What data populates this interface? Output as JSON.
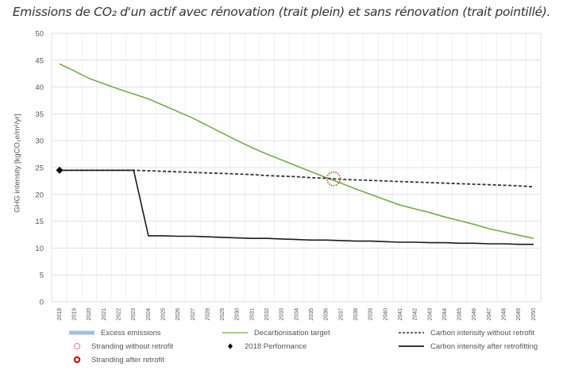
{
  "title": "Emissions de CO₂ d'un actif avec rénovation (trait plein) et sans rénovation (trait pointillé).",
  "chart_data": {
    "type": "line",
    "title": "Emissions de CO2 d'un actif avec rénovation (trait plein) et sans rénovation (trait pointillé).",
    "xlabel": "",
    "ylabel": "GHG intensity [kgCO2e/m²/yr]",
    "ylim": [
      0,
      50
    ],
    "yticks": [
      0,
      5,
      10,
      15,
      20,
      25,
      30,
      35,
      40,
      45,
      50
    ],
    "grid": true,
    "legend_position": "bottom",
    "x": [
      2018,
      2019,
      2020,
      2021,
      2022,
      2023,
      2024,
      2025,
      2026,
      2027,
      2028,
      2029,
      2030,
      2031,
      2032,
      2033,
      2034,
      2035,
      2036,
      2037,
      2038,
      2039,
      2040,
      2041,
      2042,
      2043,
      2044,
      2045,
      2046,
      2047,
      2048,
      2049,
      2050
    ],
    "series": [
      {
        "name": "Decarbonisation target",
        "color": "#70ad47",
        "style": "solid",
        "values": [
          44.3,
          43.0,
          41.6,
          40.6,
          39.6,
          38.7,
          37.8,
          36.6,
          35.4,
          34.2,
          32.8,
          31.4,
          30.0,
          28.7,
          27.5,
          26.4,
          25.3,
          24.2,
          23.1,
          22.1,
          21.0,
          20.0,
          19.0,
          18.0,
          17.3,
          16.6,
          15.8,
          15.1,
          14.4,
          13.6,
          13.0,
          12.4,
          11.8
        ]
      },
      {
        "name": "Carbon intensity without retrofit",
        "color": "#333333",
        "style": "dashed",
        "values": [
          24.5,
          24.5,
          24.5,
          24.5,
          24.5,
          24.5,
          24.4,
          24.3,
          24.2,
          24.1,
          24.0,
          23.9,
          23.8,
          23.7,
          23.5,
          23.4,
          23.3,
          23.1,
          23.0,
          22.8,
          22.7,
          22.6,
          22.5,
          22.4,
          22.3,
          22.2,
          22.1,
          22.0,
          21.9,
          21.8,
          21.7,
          21.6,
          21.4
        ]
      },
      {
        "name": "Carbon intensity after retrofitting",
        "color": "#1a1a1a",
        "style": "solid",
        "values": [
          24.5,
          24.5,
          24.5,
          24.5,
          24.5,
          24.5,
          12.3,
          12.3,
          12.2,
          12.2,
          12.1,
          12.0,
          11.9,
          11.8,
          11.8,
          11.7,
          11.6,
          11.5,
          11.5,
          11.4,
          11.3,
          11.3,
          11.2,
          11.1,
          11.1,
          11.0,
          11.0,
          10.9,
          10.9,
          10.8,
          10.8,
          10.7,
          10.7
        ]
      }
    ],
    "markers": [
      {
        "name": "2018 Performance",
        "x": 2018,
        "y": 24.5,
        "shape": "diamond",
        "color": "#000000"
      },
      {
        "name": "Stranding without retrofit",
        "x": 2036.5,
        "y": 22.9,
        "shape": "dotted-circle",
        "color": "#e03030"
      }
    ],
    "legend": [
      {
        "label": "Excess emissions",
        "symbol": "blue-bar",
        "color": "#9dc3e6"
      },
      {
        "label": "Decarbonisation target",
        "symbol": "green-line",
        "color": "#70ad47"
      },
      {
        "label": "Carbon intensity without retrofit",
        "symbol": "dashed-line",
        "color": "#333333"
      },
      {
        "label": "Stranding without retrofit",
        "symbol": "dotted-circle",
        "color": "#e03030"
      },
      {
        "label": "2018 Performance",
        "symbol": "diamond",
        "color": "#000000"
      },
      {
        "label": "Carbon intensity after retrofitting",
        "symbol": "solid-line",
        "color": "#1a1a1a"
      },
      {
        "label": "Stranding after retrofit",
        "symbol": "circle",
        "color": "#c00000"
      }
    ]
  },
  "axis": {
    "ylabel": "GHG intensity [kgCO₂e/m²/yr]"
  }
}
